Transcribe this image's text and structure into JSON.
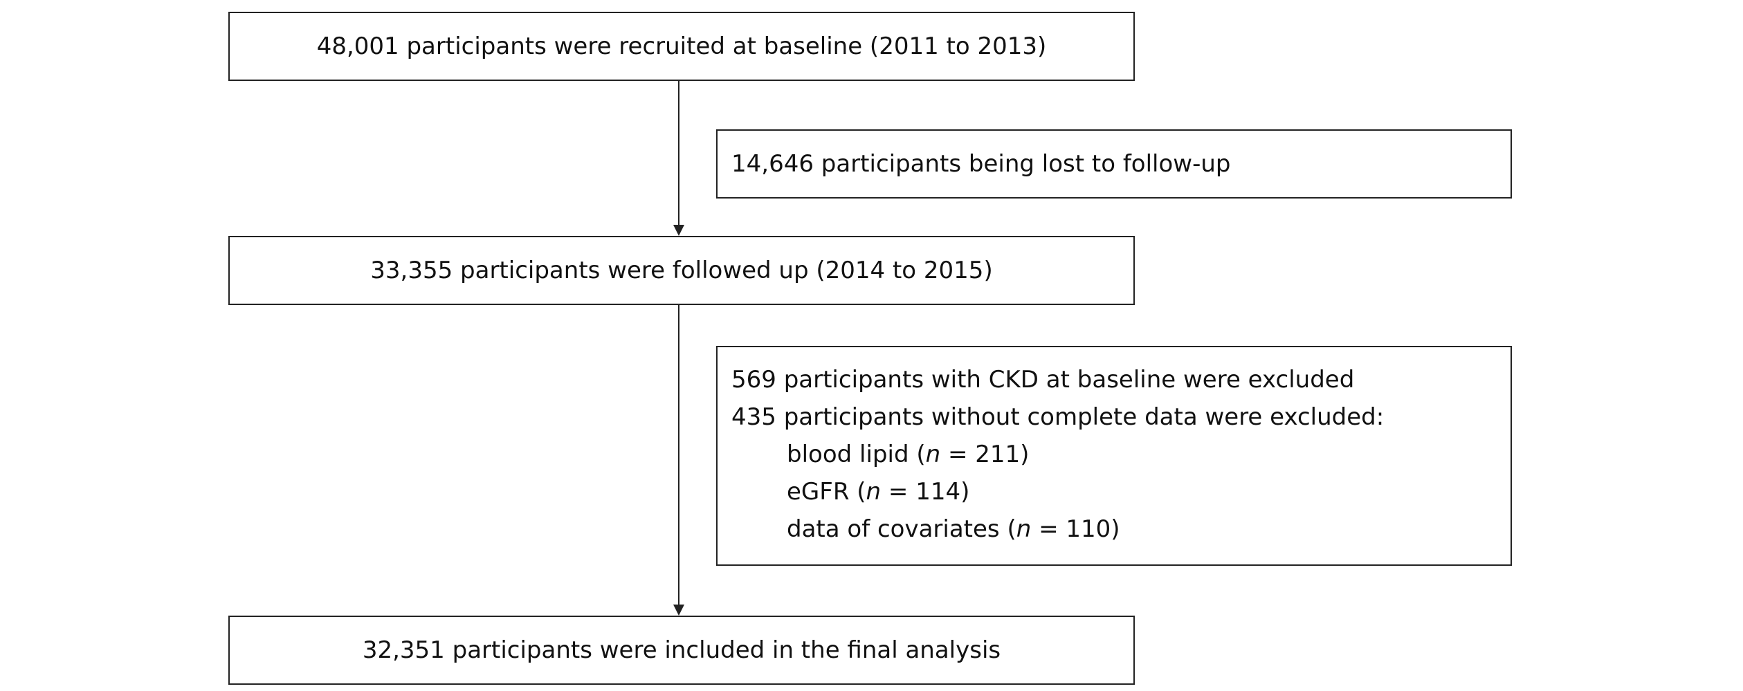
{
  "flow": {
    "recruited": "48,001 participants were recruited at baseline (2011 to 2013)",
    "lost": "14,646 participants being lost to follow-up",
    "followed": "33,355 participants were followed up (2014 to 2015)",
    "exclusions": {
      "ckd": "569 participants with CKD at baseline were excluded",
      "incomplete": "435 participants without complete data were excluded:",
      "items": [
        {
          "label": "blood lipid (",
          "n": "n",
          "value": " = 211)"
        },
        {
          "label": "eGFR (",
          "n": "n",
          "value": " = 114)"
        },
        {
          "label": "data of covariates (",
          "n": "n",
          "value": " = 110)"
        }
      ]
    },
    "final": "32,351 participants were included in the final analysis"
  }
}
